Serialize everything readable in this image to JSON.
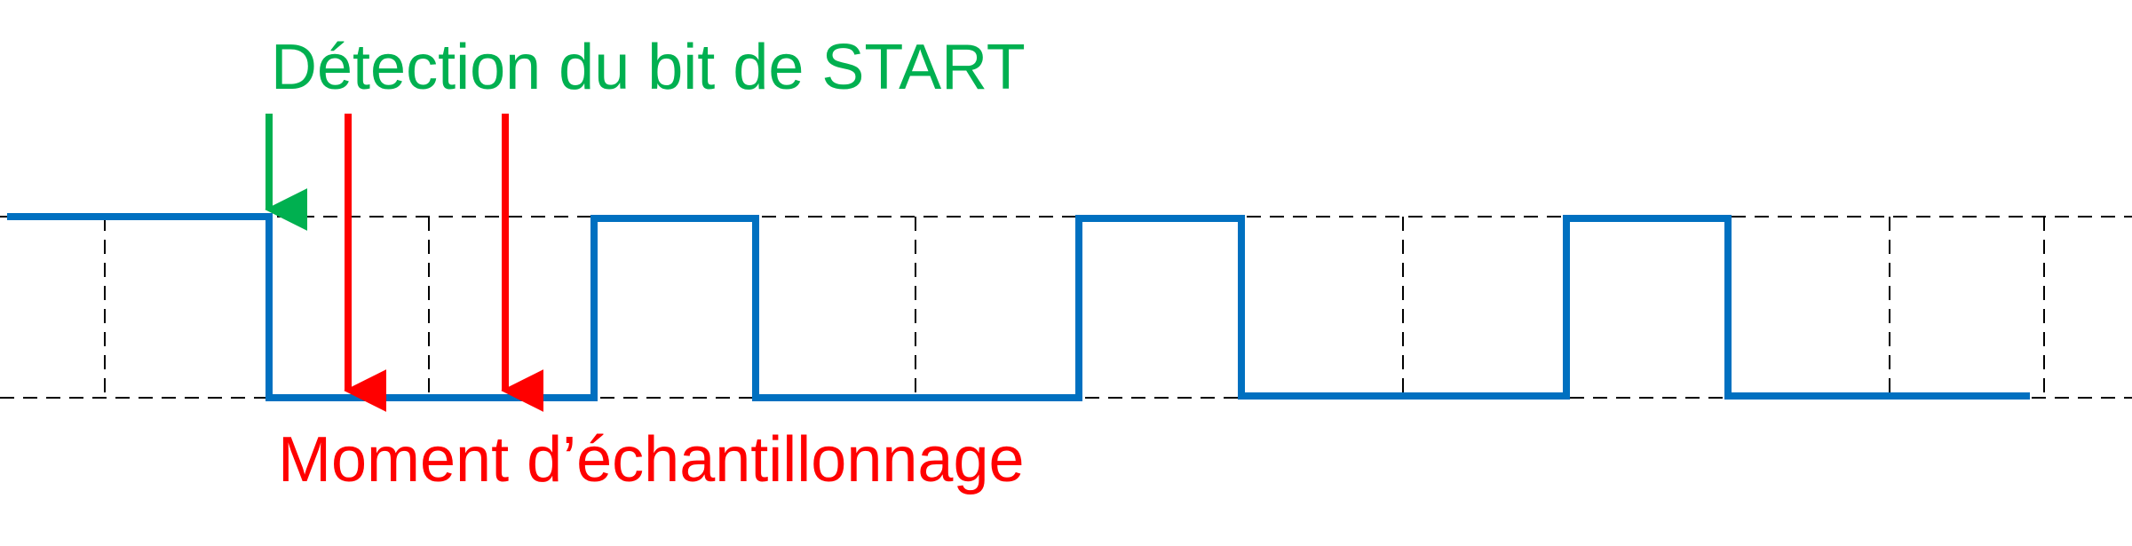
{
  "title_label": "Détection du bit de START",
  "sample_label": "Moment d’échantillonnage",
  "colors": {
    "signal": "#0070c0",
    "start_arrow": "#00b050",
    "sample_arrow": "#ff0000",
    "grid": "#000000",
    "background": "#ffffff"
  },
  "signal_levels": [
    "high",
    "low",
    "low",
    "high",
    "low",
    "low",
    "high",
    "low",
    "low",
    "high",
    "low",
    "low"
  ],
  "idle_level": "high"
}
